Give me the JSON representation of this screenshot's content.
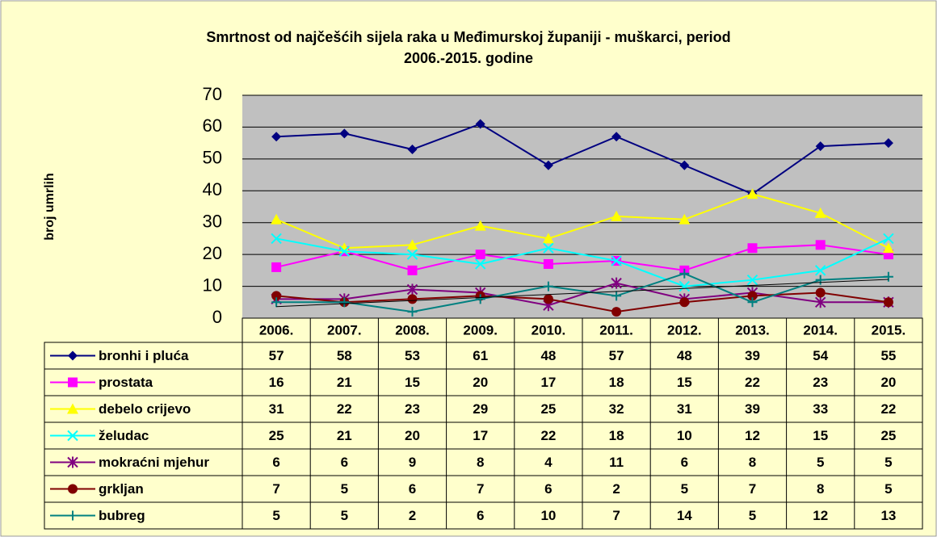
{
  "chart_data": {
    "type": "line",
    "title": "Smrtnost od najčešćih sijela raka u Međimurskoj županiji - muškarci, period",
    "subtitle": "2006.-2015. godine",
    "y_label": "broj umrlih",
    "categories": [
      "2006.",
      "2007.",
      "2008.",
      "2009.",
      "2010.",
      "2011.",
      "2012.",
      "2013.",
      "2014.",
      "2015."
    ],
    "ylim": [
      0,
      70
    ],
    "yticks": [
      0,
      10,
      20,
      30,
      40,
      50,
      60,
      70
    ],
    "grid": true,
    "series": [
      {
        "name": "bronhi i pluća",
        "color": "#000080",
        "marker": "diamond",
        "values": [
          57,
          58,
          53,
          61,
          48,
          57,
          48,
          39,
          54,
          55
        ]
      },
      {
        "name": "prostata",
        "color": "#FF00FF",
        "marker": "square",
        "values": [
          16,
          21,
          15,
          20,
          17,
          18,
          15,
          22,
          23,
          20
        ]
      },
      {
        "name": "debelo crijevo",
        "color": "#FFFF00",
        "marker": "triangle",
        "values": [
          31,
          22,
          23,
          29,
          25,
          32,
          31,
          39,
          33,
          22
        ]
      },
      {
        "name": "želudac",
        "color": "#00FFFF",
        "marker": "x",
        "values": [
          25,
          21,
          20,
          17,
          22,
          18,
          10,
          12,
          15,
          25
        ]
      },
      {
        "name": "mokraćni mjehur",
        "color": "#800080",
        "marker": "star",
        "values": [
          6,
          6,
          9,
          8,
          4,
          11,
          6,
          8,
          5,
          5
        ]
      },
      {
        "name": "grkljan",
        "color": "#800000",
        "marker": "circle",
        "values": [
          7,
          5,
          6,
          7,
          6,
          2,
          5,
          7,
          8,
          5
        ]
      },
      {
        "name": "bubreg",
        "color": "#008080",
        "marker": "plus",
        "trendline": true,
        "values": [
          5,
          5,
          2,
          6,
          10,
          7,
          14,
          5,
          12,
          13
        ]
      }
    ]
  }
}
